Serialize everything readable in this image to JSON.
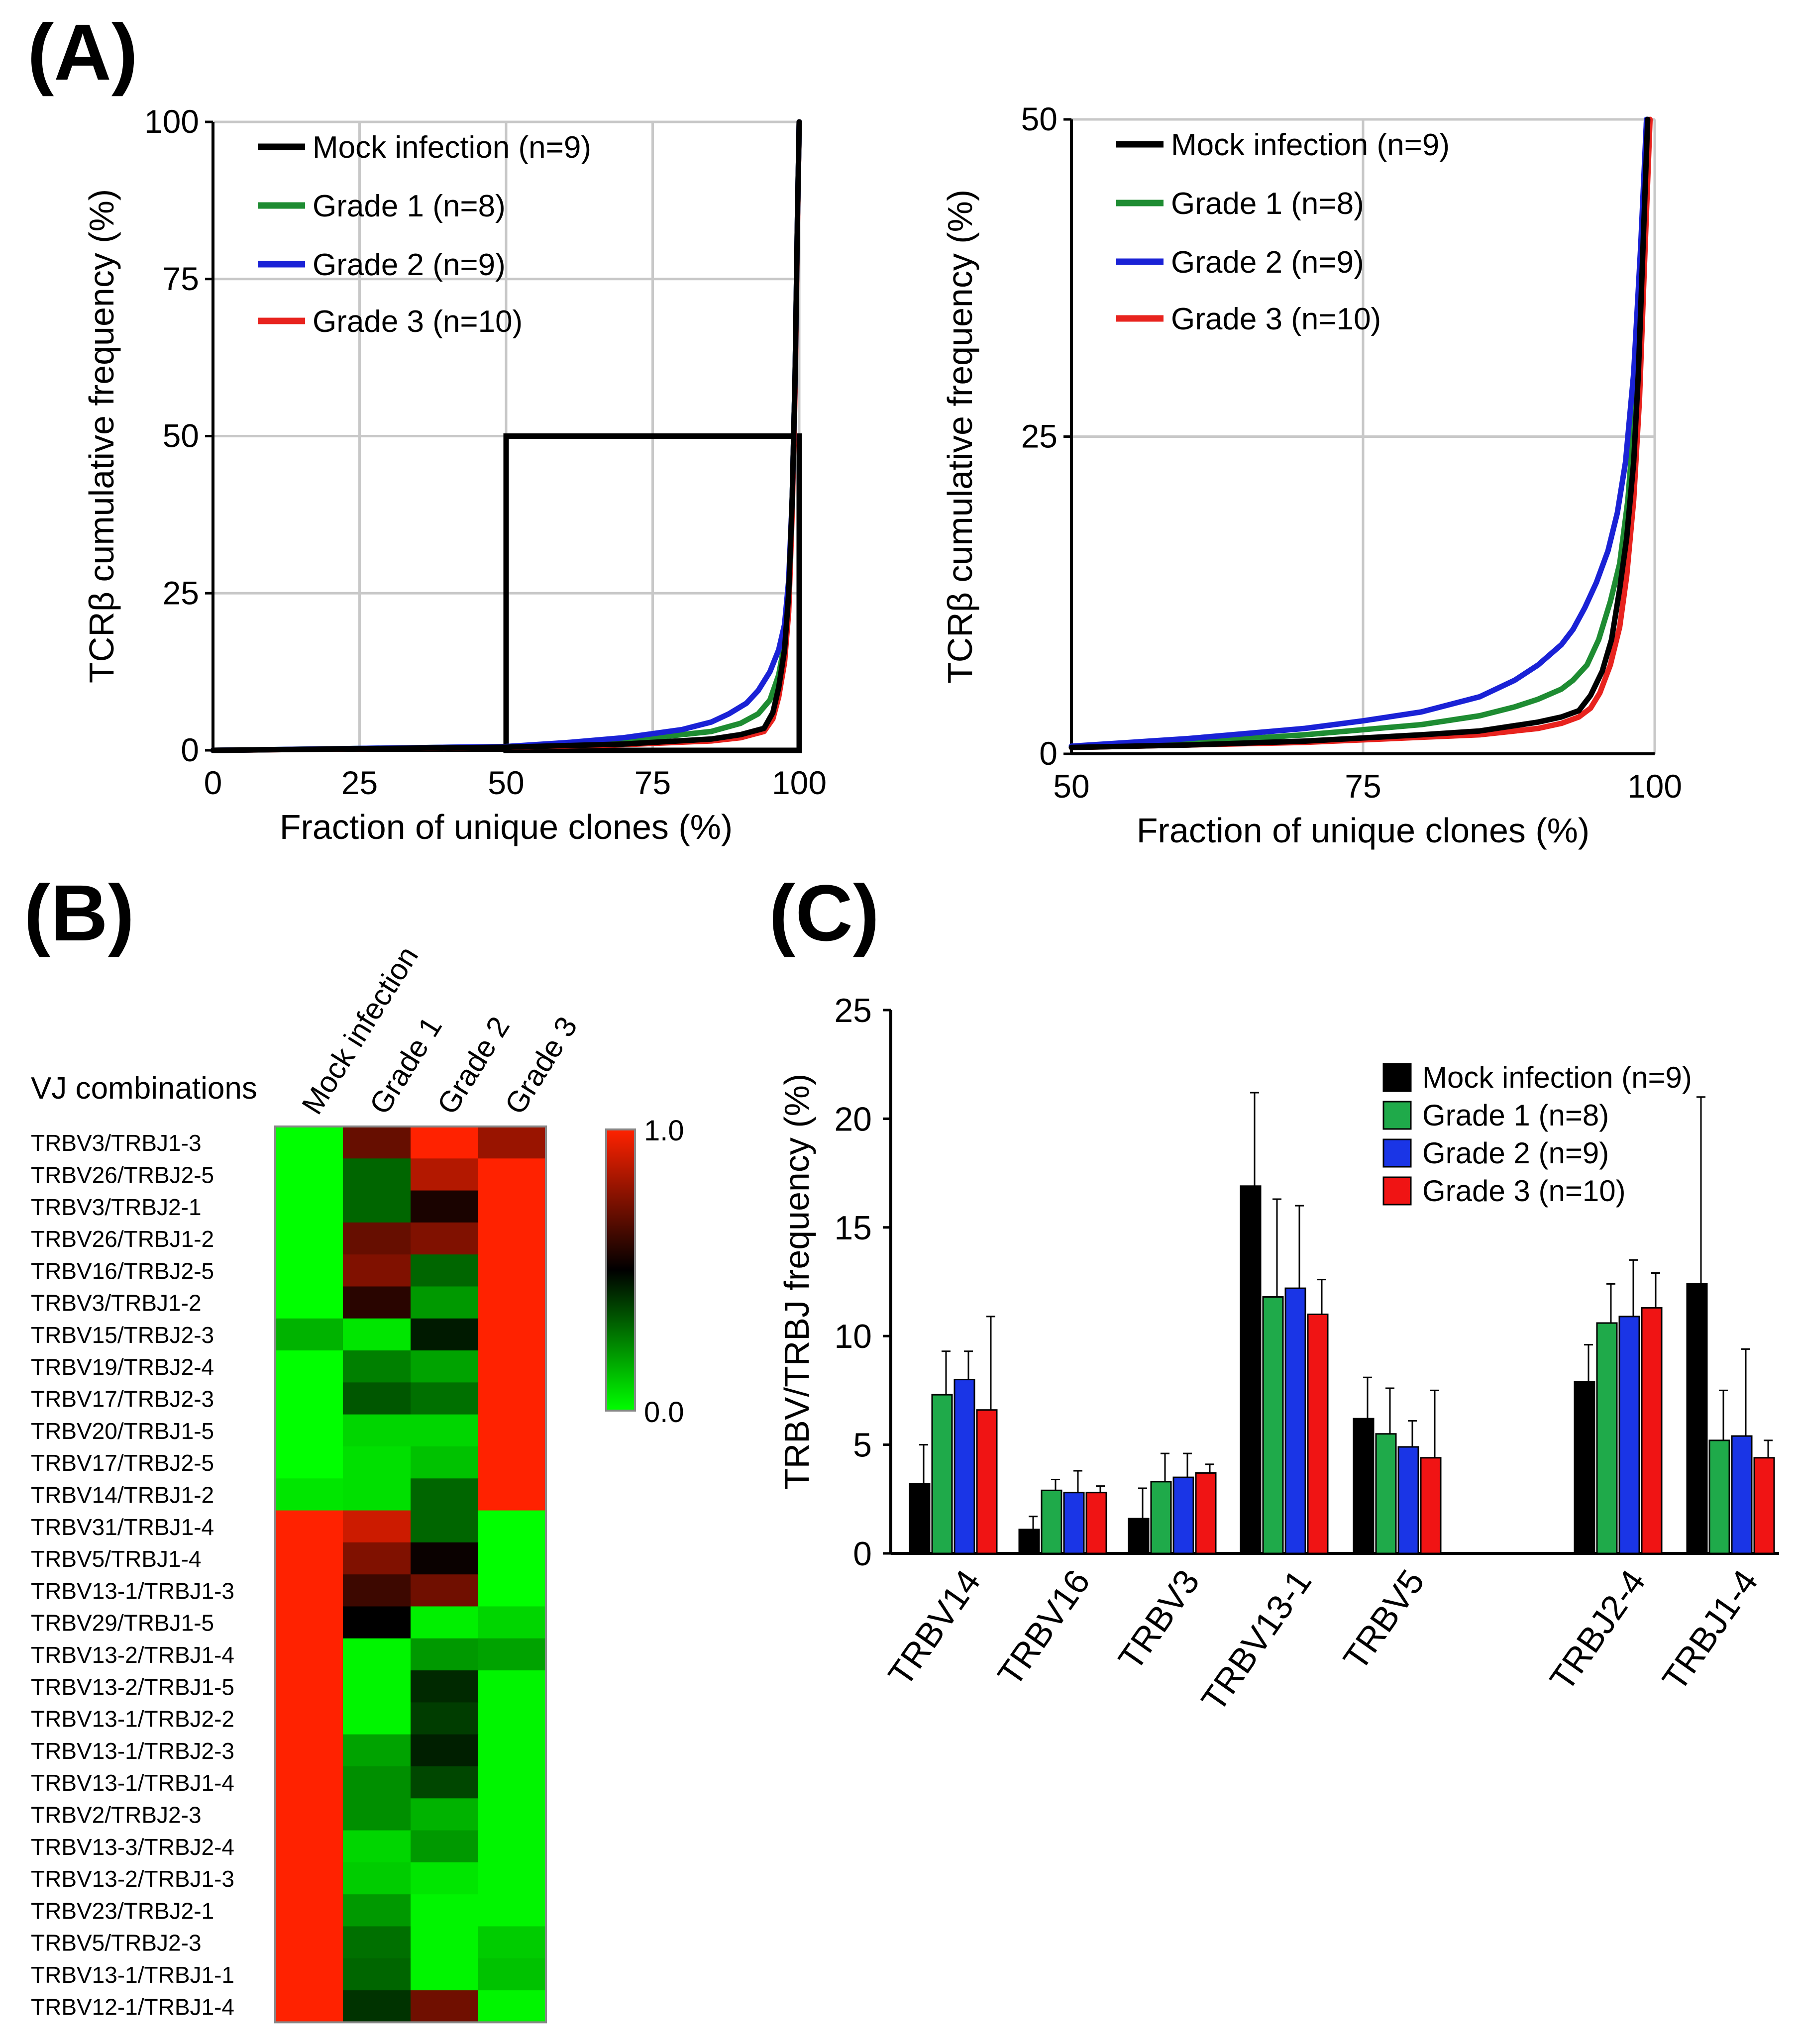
{
  "figure": {
    "panel_labels": {
      "a": "(A)",
      "b": "(B)",
      "c": "(C)"
    },
    "colors": {
      "mock": "#000000",
      "grade1": "#1e8c32",
      "grade2": "#1a22d6",
      "grade3": "#e8231e",
      "grid": "#c8c8c8",
      "bar_green": "#1faa4a",
      "bar_blue": "#1a35e6",
      "bar_red": "#f01414"
    }
  },
  "chart_data": [
    {
      "id": "A1",
      "type": "line",
      "title": "",
      "xlabel": "Fraction of unique clones (%)",
      "ylabel": "TCRβ cumulative frequency (%)",
      "xlim": [
        0,
        100
      ],
      "ylim": [
        0,
        100
      ],
      "xticks": [
        "0",
        "25",
        "50",
        "75",
        "100"
      ],
      "yticks": [
        "0",
        "25",
        "50",
        "75",
        "100"
      ],
      "grid": true,
      "legend": "top-left",
      "zoom_box": {
        "x": [
          50,
          100
        ],
        "y": [
          0,
          50
        ]
      },
      "series": [
        {
          "name": "Mock infection (n=9)",
          "x": [
            0,
            50,
            70,
            85,
            90,
            94,
            95.5,
            96.5,
            97.5,
            98.2,
            98.8,
            99.3,
            99.7,
            100
          ],
          "y": [
            0,
            0.5,
            1,
            1.8,
            2.5,
            3.5,
            6,
            10,
            16,
            25,
            40,
            60,
            85,
            100
          ]
        },
        {
          "name": "Grade 1 (n=8)",
          "x": [
            0,
            50,
            70,
            85,
            90,
            93,
            95,
            96.5,
            97.5,
            98.2,
            98.8,
            99.3,
            99.7,
            100
          ],
          "y": [
            0,
            0.6,
            1.5,
            3,
            4.3,
            5.8,
            8,
            12,
            17,
            25,
            40,
            60,
            85,
            100
          ]
        },
        {
          "name": "Grade 2 (n=9)",
          "x": [
            0,
            50,
            60,
            70,
            80,
            85,
            88,
            91,
            93,
            95,
            96.5,
            97.5,
            98.2,
            98.8,
            99.3,
            99.7,
            100
          ],
          "y": [
            0,
            0.6,
            1.2,
            2,
            3.3,
            4.5,
            5.8,
            7.5,
            9.5,
            12.5,
            16,
            20,
            27,
            40,
            60,
            85,
            100
          ]
        },
        {
          "name": "Grade 3 (n=10)",
          "x": [
            0,
            50,
            70,
            85,
            90,
            94,
            95.5,
            96.5,
            97.5,
            98.2,
            98.8,
            99.3,
            99.7,
            100
          ],
          "y": [
            0,
            0.5,
            0.9,
            1.5,
            2,
            3,
            5,
            8.5,
            14,
            22,
            38,
            58,
            84,
            100
          ]
        }
      ]
    },
    {
      "id": "A2",
      "type": "line",
      "title": "",
      "xlabel": "Fraction of unique clones (%)",
      "ylabel": "TCRβ cumulative frequency (%)",
      "xlim": [
        50,
        100
      ],
      "ylim": [
        0,
        50
      ],
      "xticks": [
        "50",
        "75",
        "100"
      ],
      "yticks": [
        "0",
        "25",
        "50"
      ],
      "grid": true,
      "legend": "top-left",
      "series": [
        {
          "name": "Mock infection (n=9)",
          "x": [
            50,
            60,
            70,
            80,
            85,
            90,
            92,
            93.5,
            94.5,
            95.5,
            96.3,
            97,
            97.6,
            98.2,
            98.6,
            99,
            99.4
          ],
          "y": [
            0.5,
            0.7,
            1,
            1.5,
            1.8,
            2.5,
            2.9,
            3.4,
            4.6,
            6.5,
            9,
            13,
            17,
            23,
            30,
            40,
            50
          ]
        },
        {
          "name": "Grade 1 (n=8)",
          "x": [
            50,
            60,
            70,
            80,
            85,
            88,
            90,
            92,
            93,
            94.2,
            95.2,
            96.2,
            97,
            97.7,
            98.3,
            98.8,
            99.3
          ],
          "y": [
            0.6,
            0.9,
            1.5,
            2.3,
            3,
            3.7,
            4.3,
            5.1,
            5.8,
            7,
            9,
            12,
            15,
            20,
            27,
            37,
            50
          ]
        },
        {
          "name": "Grade 2 (n=9)",
          "x": [
            50,
            60,
            70,
            75,
            80,
            85,
            88,
            90,
            92,
            93,
            94,
            95,
            96,
            96.8,
            97.5,
            98.2,
            98.8,
            99.3
          ],
          "y": [
            0.6,
            1.2,
            2,
            2.6,
            3.3,
            4.5,
            5.8,
            7,
            8.6,
            9.8,
            11.5,
            13.5,
            16,
            19,
            23,
            30,
            40,
            50
          ]
        },
        {
          "name": "Grade 3 (n=10)",
          "x": [
            50,
            60,
            70,
            80,
            85,
            90,
            92,
            93.5,
            94.5,
            95.3,
            96.2,
            97,
            97.6,
            98.2,
            98.7,
            99.1,
            99.6
          ],
          "y": [
            0.5,
            0.7,
            0.9,
            1.3,
            1.5,
            2,
            2.4,
            2.9,
            3.6,
            4.8,
            7,
            10,
            14,
            20,
            28,
            38,
            50
          ]
        }
      ]
    },
    {
      "id": "B",
      "type": "heatmap",
      "title": "",
      "row_header": "VJ combinations",
      "columns": [
        "Mock infection",
        "Grade 1",
        "Grade 2",
        "Grade 3"
      ],
      "colorbar": {
        "max_label": "1.0",
        "min_label": "0.0",
        "low_color": "#00ff00",
        "mid_color": "#000000",
        "high_color": "#ff2200"
      },
      "rows": [
        {
          "label": "TRBV3/TRBJ1-3",
          "values": [
            0.0,
            0.7,
            1.0,
            0.8
          ]
        },
        {
          "label": "TRBV26/TRBJ2-5",
          "values": [
            0.0,
            0.3,
            0.85,
            1.0
          ]
        },
        {
          "label": "TRBV3/TRBJ2-1",
          "values": [
            0.0,
            0.3,
            0.55,
            1.0
          ]
        },
        {
          "label": "TRBV26/TRBJ1-2",
          "values": [
            0.0,
            0.7,
            0.75,
            1.0
          ]
        },
        {
          "label": "TRBV16/TRBJ2-5",
          "values": [
            0.0,
            0.75,
            0.3,
            1.0
          ]
        },
        {
          "label": "TRBV3/TRBJ1-2",
          "values": [
            0.0,
            0.58,
            0.2,
            1.0
          ]
        },
        {
          "label": "TRBV15/TRBJ2-3",
          "values": [
            0.15,
            0.05,
            0.45,
            1.0
          ]
        },
        {
          "label": "TRBV19/TRBJ2-4",
          "values": [
            0.0,
            0.25,
            0.18,
            1.0
          ]
        },
        {
          "label": "TRBV17/TRBJ2-3",
          "values": [
            0.0,
            0.33,
            0.28,
            1.0
          ]
        },
        {
          "label": "TRBV20/TRBJ1-5",
          "values": [
            0.0,
            0.08,
            0.08,
            1.0
          ]
        },
        {
          "label": "TRBV17/TRBJ2-5",
          "values": [
            0.0,
            0.06,
            0.12,
            1.0
          ]
        },
        {
          "label": "TRBV14/TRBJ1-2",
          "values": [
            0.05,
            0.06,
            0.3,
            1.0
          ]
        },
        {
          "label": "TRBV31/TRBJ1-4",
          "values": [
            1.0,
            0.9,
            0.3,
            0.0
          ]
        },
        {
          "label": "TRBV5/TRBJ1-4",
          "values": [
            1.0,
            0.75,
            0.52,
            0.0
          ]
        },
        {
          "label": "TRBV13-1/TRBJ1-3",
          "values": [
            1.0,
            0.62,
            0.72,
            0.0
          ]
        },
        {
          "label": "TRBV29/TRBJ1-5",
          "values": [
            1.0,
            0.5,
            0.03,
            0.08
          ]
        },
        {
          "label": "TRBV13-2/TRBJ1-4",
          "values": [
            1.0,
            0.02,
            0.2,
            0.18
          ]
        },
        {
          "label": "TRBV13-2/TRBJ1-5",
          "values": [
            1.0,
            0.02,
            0.42,
            0.02
          ]
        },
        {
          "label": "TRBV13-1/TRBJ2-2",
          "values": [
            1.0,
            0.02,
            0.38,
            0.02
          ]
        },
        {
          "label": "TRBV13-1/TRBJ2-3",
          "values": [
            1.0,
            0.18,
            0.44,
            0.02
          ]
        },
        {
          "label": "TRBV13-1/TRBJ1-4",
          "values": [
            1.0,
            0.22,
            0.36,
            0.02
          ]
        },
        {
          "label": "TRBV2/TRBJ2-3",
          "values": [
            1.0,
            0.22,
            0.15,
            0.02
          ]
        },
        {
          "label": "TRBV13-3/TRBJ2-4",
          "values": [
            1.0,
            0.08,
            0.2,
            0.02
          ]
        },
        {
          "label": "TRBV13-2/TRBJ1-3",
          "values": [
            1.0,
            0.1,
            0.05,
            0.02
          ]
        },
        {
          "label": "TRBV23/TRBJ2-1",
          "values": [
            1.0,
            0.2,
            0.02,
            0.02
          ]
        },
        {
          "label": "TRBV5/TRBJ2-3",
          "values": [
            1.0,
            0.28,
            0.02,
            0.1
          ]
        },
        {
          "label": "TRBV13-1/TRBJ1-1",
          "values": [
            1.0,
            0.3,
            0.02,
            0.12
          ]
        },
        {
          "label": "TRBV12-1/TRBJ1-4",
          "values": [
            1.0,
            0.4,
            0.72,
            0.02
          ]
        }
      ]
    },
    {
      "id": "C",
      "type": "bar",
      "title": "",
      "xlabel": "",
      "ylabel": "TRBV/TRBJ frequency (%)",
      "ylim": [
        0,
        25
      ],
      "yticks": [
        "0",
        "5",
        "10",
        "15",
        "20",
        "25"
      ],
      "grid": false,
      "legend": "top-right",
      "categories": [
        "TRBV14",
        "TRBV16",
        "TRBV3",
        "TRBV13-1",
        "TRBV5",
        "TRBJ2-4",
        "TRBJ1-4"
      ],
      "series": [
        {
          "name": "Mock infection (n=9)",
          "values": [
            3.2,
            1.1,
            1.6,
            16.9,
            6.2,
            7.9,
            12.4
          ],
          "errors": [
            1.8,
            0.6,
            1.4,
            4.3,
            1.9,
            1.7,
            8.6
          ]
        },
        {
          "name": "Grade 1 (n=8)",
          "values": [
            7.3,
            2.9,
            3.3,
            11.8,
            5.5,
            10.6,
            5.2
          ],
          "errors": [
            2.0,
            0.5,
            1.3,
            4.5,
            2.1,
            1.8,
            2.3
          ]
        },
        {
          "name": "Grade 2 (n=9)",
          "values": [
            8.0,
            2.8,
            3.5,
            12.2,
            4.9,
            10.9,
            5.4
          ],
          "errors": [
            1.3,
            1.0,
            1.1,
            3.8,
            1.2,
            2.6,
            4.0
          ]
        },
        {
          "name": "Grade 3 (n=10)",
          "values": [
            6.6,
            2.8,
            3.7,
            11.0,
            4.4,
            11.3,
            4.4
          ],
          "errors": [
            4.3,
            0.3,
            0.4,
            1.6,
            3.1,
            1.6,
            0.8
          ]
        }
      ]
    }
  ]
}
